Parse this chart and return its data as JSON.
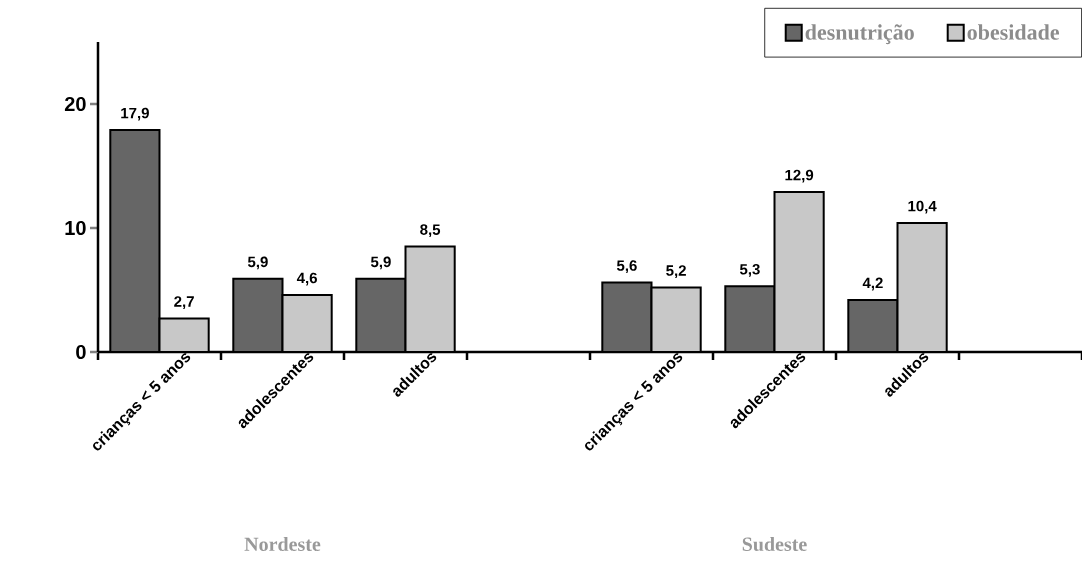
{
  "chart_data": {
    "type": "bar",
    "categories": [
      "crianças < 5 anos",
      "adolescentes",
      "adultos",
      null,
      "crianças < 5 anos",
      "adolescentes",
      "adultos",
      null
    ],
    "series": [
      {
        "name": "desnutrição",
        "color": "#666666",
        "values": [
          17.9,
          5.9,
          5.9,
          null,
          5.6,
          5.3,
          4.2,
          null
        ],
        "value_labels": [
          "17,9",
          "5,9",
          "5,9",
          null,
          "5,6",
          "5,3",
          "4,2",
          null
        ]
      },
      {
        "name": "obesidade",
        "color": "#c8c8c8",
        "values": [
          2.7,
          4.6,
          8.5,
          null,
          5.2,
          12.9,
          10.4,
          null
        ],
        "value_labels": [
          "2,7",
          "4,6",
          "8,5",
          null,
          "5,2",
          "12,9",
          "10,4",
          null
        ]
      }
    ],
    "ylim": [
      0,
      25
    ],
    "yticks": [
      0,
      10,
      20
    ],
    "legend": "top right",
    "annotations": [
      "Nordeste",
      "Sudeste"
    ]
  }
}
